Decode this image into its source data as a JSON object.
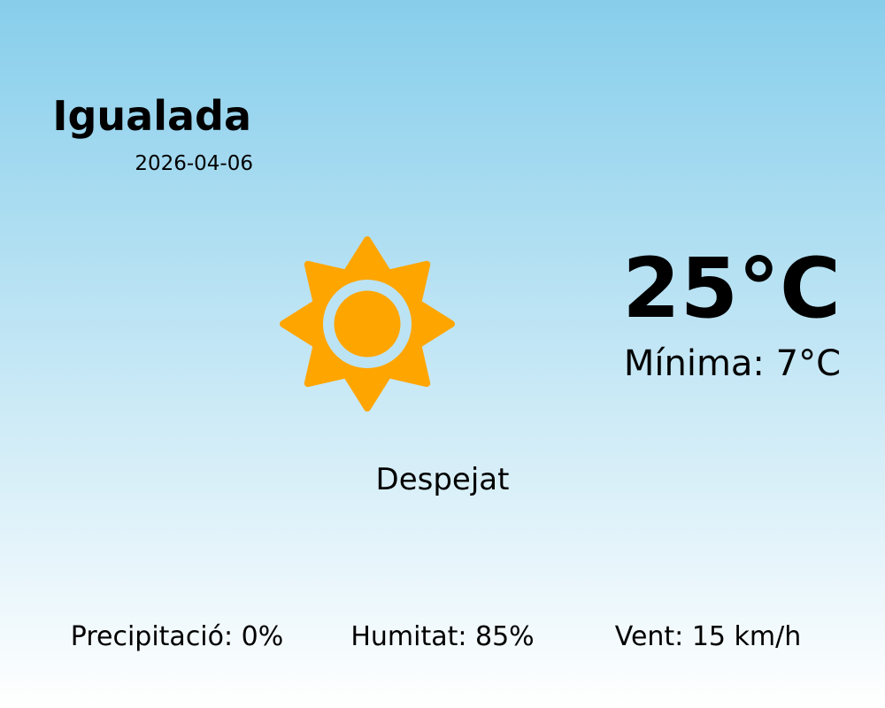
{
  "location": {
    "city": "Igualada",
    "date": "2026-04-06"
  },
  "current": {
    "temperature": "25°C",
    "minimum": "Mínima: 7°C",
    "condition": "Despejat",
    "icon": "sun-icon"
  },
  "stats": [
    {
      "label": "Precipitació: 0%"
    },
    {
      "label": "Humitat: 85%"
    },
    {
      "label": "Vent: 15 km/h"
    }
  ],
  "colors": {
    "sun": "#ffa500",
    "sky_top": "#87ceeb",
    "sky_bottom": "#ffffff"
  }
}
